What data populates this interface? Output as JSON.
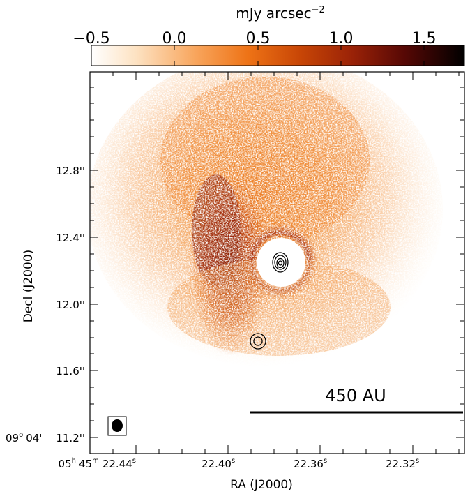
{
  "colorbar": {
    "unit_label": "mJy arcsec",
    "unit_exponent": "−2",
    "ticks": [
      "−0.5",
      "0.0",
      "0.5",
      "1.0",
      "1.5"
    ]
  },
  "axes": {
    "xlabel": "RA (J2000)",
    "ylabel": "Decl (J2000)",
    "x_ticks": [
      {
        "h": "05",
        "hs": "h",
        "m": "45",
        "ms": "m",
        "s": "22.44",
        "ss": "s"
      },
      {
        "s": "22.40",
        "ss": "s"
      },
      {
        "s": "22.36",
        "ss": "s"
      },
      {
        "s": "22.32",
        "ss": "s"
      }
    ],
    "y_ticks": [
      "12.8''",
      "12.4''",
      "12.0''",
      "11.6''",
      "11.2''"
    ],
    "y_prefix": {
      "deg": "09",
      "deg_sup": "o",
      "min": "04'"
    }
  },
  "annotations": {
    "scalebar_label": "450 AU"
  },
  "colors": {
    "cmap": [
      "#ffffff",
      "#fdd9b3",
      "#f7a055",
      "#ea6e0f",
      "#c44506",
      "#8b1a06",
      "#4a0604",
      "#000000"
    ]
  }
}
